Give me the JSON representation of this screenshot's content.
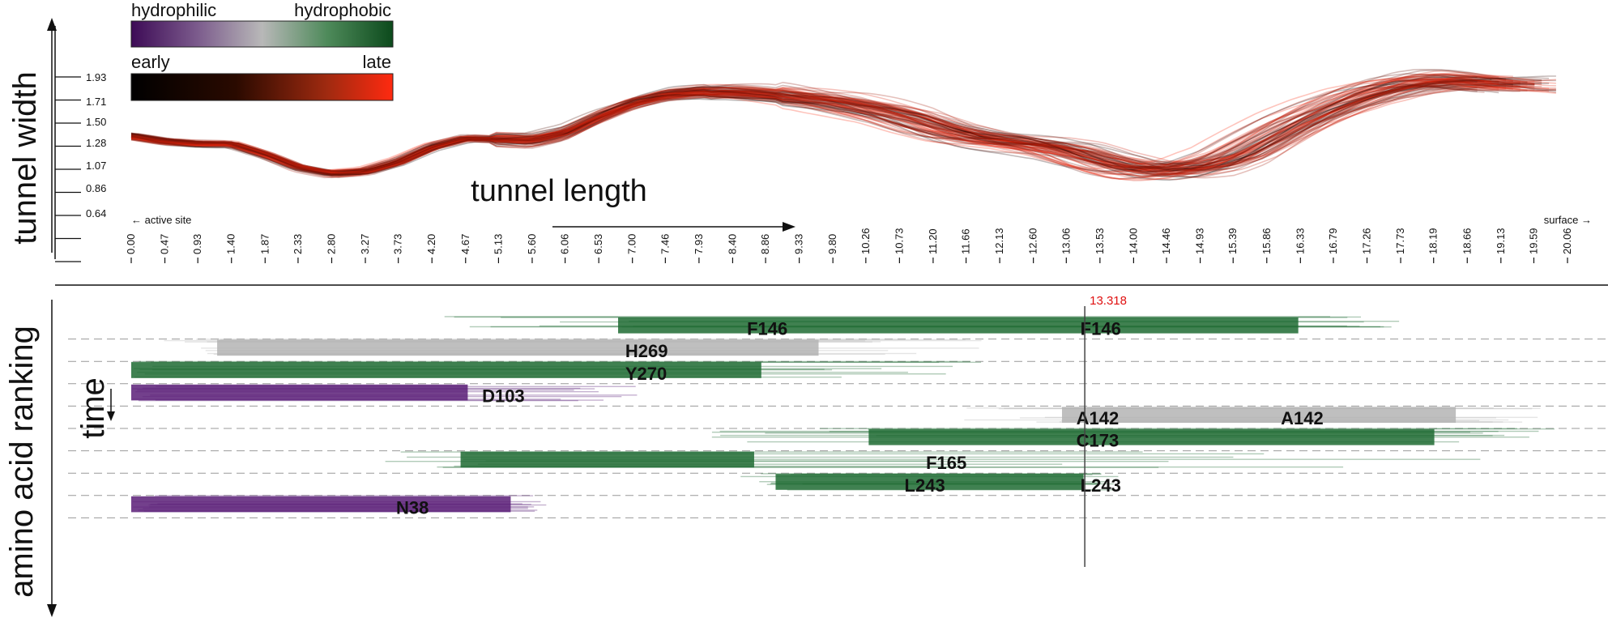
{
  "colors": {
    "hydrophilic": "#5a1f78",
    "neutral": "#b4b4b4",
    "hydrophobic": "#1f6b33",
    "early": "#000000",
    "late": "#ff2a10",
    "marker_text": "#e01010"
  },
  "legend": {
    "hydro_left": "hydrophilic",
    "hydro_right": "hydrophobic",
    "time_left": "early",
    "time_right": "late"
  },
  "chart_data": [
    {
      "type": "line",
      "title": "",
      "ylabel": "tunnel width",
      "xlabel": "tunnel length",
      "x_start_label": "← active site",
      "x_end_label": "surface →",
      "y_ticks": [
        "1.93",
        "1.71",
        "1.50",
        "1.28",
        "1.07",
        "0.86",
        "0.64"
      ],
      "x_ticks": [
        "0.00",
        "0.47",
        "0.93",
        "1.40",
        "1.87",
        "2.33",
        "2.80",
        "3.27",
        "3.73",
        "4.20",
        "4.67",
        "5.13",
        "5.60",
        "6.06",
        "6.53",
        "7.00",
        "7.46",
        "7.93",
        "8.40",
        "8.86",
        "9.33",
        "9.80",
        "10.26",
        "10.73",
        "11.20",
        "11.66",
        "12.13",
        "12.60",
        "13.06",
        "13.53",
        "14.00",
        "14.46",
        "14.93",
        "15.39",
        "15.86",
        "16.33",
        "16.79",
        "17.26",
        "17.73",
        "18.19",
        "18.66",
        "19.13",
        "19.59",
        "20.06"
      ],
      "xlim": [
        0,
        20.06
      ],
      "ylim": [
        0.64,
        1.93
      ],
      "mean_profile": {
        "x": [
          0,
          0.47,
          0.93,
          1.4,
          1.87,
          2.33,
          2.8,
          3.27,
          3.73,
          4.2,
          4.67,
          5.13,
          5.6,
          6.06,
          6.53,
          7.0,
          7.46,
          7.93,
          8.4,
          8.86,
          9.33,
          9.8,
          10.26,
          10.73,
          11.2,
          11.66,
          12.13,
          12.6,
          13.06,
          13.53,
          14.0,
          14.46,
          14.93,
          15.39,
          15.86,
          16.33,
          16.79,
          17.26,
          17.73,
          18.19,
          18.66,
          19.13,
          19.59
        ],
        "y": [
          1.37,
          1.32,
          1.3,
          1.3,
          1.2,
          1.08,
          1.02,
          1.04,
          1.13,
          1.27,
          1.35,
          1.34,
          1.33,
          1.4,
          1.55,
          1.68,
          1.76,
          1.79,
          1.79,
          1.77,
          1.74,
          1.7,
          1.64,
          1.57,
          1.46,
          1.37,
          1.32,
          1.28,
          1.22,
          1.12,
          1.05,
          1.04,
          1.08,
          1.18,
          1.35,
          1.52,
          1.66,
          1.78,
          1.86,
          1.9,
          1.89,
          1.86,
          1.84
        ]
      },
      "series_count": 80
    },
    {
      "type": "heatmap",
      "ylabel": "amino acid ranking",
      "time_label": "time",
      "marker_x": 13.318,
      "marker_label": "13.318",
      "residues": [
        {
          "label": "F146",
          "label2": "F146",
          "property": "hydrophobic",
          "x_start": 4.2,
          "core_start": 6.8,
          "core_end": 16.3,
          "x_end": 17.8
        },
        {
          "label": "H269",
          "label2": "",
          "property": "neutral",
          "x_start": 0.3,
          "core_start": 1.2,
          "core_end": 9.6,
          "x_end": 11.9
        },
        {
          "label": "Y270",
          "label2": "",
          "property": "hydrophobic",
          "x_start": 0.0,
          "core_start": 0.0,
          "core_end": 8.8,
          "x_end": 11.9
        },
        {
          "label": "D103",
          "label2": "",
          "property": "hydrophilic",
          "x_start": 0.0,
          "core_start": 0.0,
          "core_end": 4.7,
          "x_end": 7.5
        },
        {
          "label": "A142",
          "label2": "A142",
          "property": "neutral",
          "x_start": 11.6,
          "core_start": 13.0,
          "core_end": 18.5,
          "x_end": 19.9
        },
        {
          "label": "C173",
          "label2": "",
          "property": "hydrophobic",
          "x_start": 7.9,
          "core_start": 10.3,
          "core_end": 18.2,
          "x_end": 19.9
        },
        {
          "label": "F165",
          "label2": "",
          "property": "hydrophobic",
          "x_start": 3.3,
          "core_start": 4.6,
          "core_end": 8.7,
          "x_end": 19.3
        },
        {
          "label": "L243",
          "label2": "L243",
          "property": "hydrophobic",
          "x_start": 8.4,
          "core_start": 9.0,
          "core_end": 13.3,
          "x_end": 13.8
        },
        {
          "label": "N38",
          "label2": "",
          "property": "hydrophilic",
          "x_start": 0.0,
          "core_start": 0.0,
          "core_end": 5.3,
          "x_end": 5.8
        }
      ]
    }
  ]
}
